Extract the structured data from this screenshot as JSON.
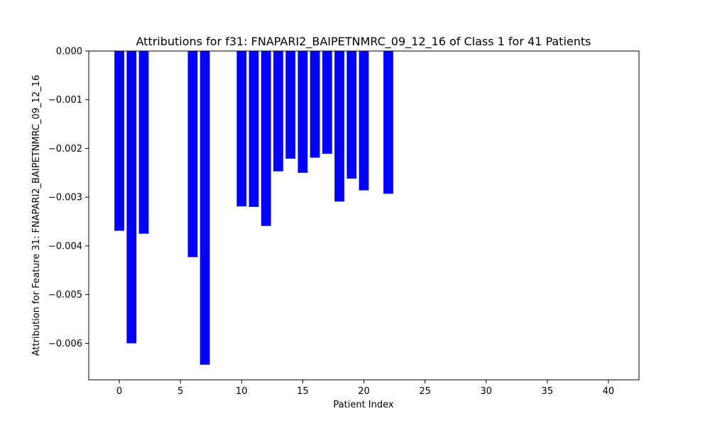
{
  "chart_data": {
    "type": "bar",
    "title": "Attributions for f31: FNAPARI2_BAIPETNMRC_09_12_16 of Class 1 for 41 Patients",
    "xlabel": "Patient Index",
    "ylabel": "Attribution for Feature 31: FNAPARI2_BAIPETNMRC_09_12_16",
    "bar_color": "#0000ff",
    "xlim": [
      -2.5,
      42.5
    ],
    "ylim": [
      -0.00675,
      0.0
    ],
    "x_ticks": [
      0,
      5,
      10,
      15,
      20,
      25,
      30,
      35,
      40
    ],
    "x_tick_labels": [
      "0",
      "5",
      "10",
      "15",
      "20",
      "25",
      "30",
      "35",
      "40"
    ],
    "y_ticks": [
      0.0,
      -0.001,
      -0.002,
      -0.003,
      -0.004,
      -0.005,
      -0.006
    ],
    "y_tick_labels": [
      "0.000",
      "−0.001",
      "−0.002",
      "−0.003",
      "−0.004",
      "−0.005",
      "−0.006"
    ],
    "grid": false,
    "bar_width": 0.8,
    "x": [
      0,
      1,
      2,
      3,
      4,
      5,
      6,
      7,
      8,
      9,
      10,
      11,
      12,
      13,
      14,
      15,
      16,
      17,
      18,
      19,
      20,
      21,
      22,
      23,
      24,
      25,
      26,
      27,
      28,
      29,
      30,
      31,
      32,
      33,
      34,
      35,
      36,
      37,
      38,
      39,
      40
    ],
    "values": [
      -0.00369,
      -0.006,
      -0.00375,
      0,
      0,
      0,
      -0.00423,
      -0.00644,
      0,
      0,
      -0.00319,
      -0.0032,
      -0.00359,
      -0.00247,
      -0.00221,
      -0.0025,
      -0.00219,
      -0.00211,
      -0.00309,
      -0.00262,
      -0.00286,
      0,
      -0.00293,
      0,
      0,
      0,
      0,
      0,
      0,
      0,
      0,
      0,
      0,
      0,
      0,
      0,
      0,
      0,
      0,
      0,
      0
    ]
  }
}
